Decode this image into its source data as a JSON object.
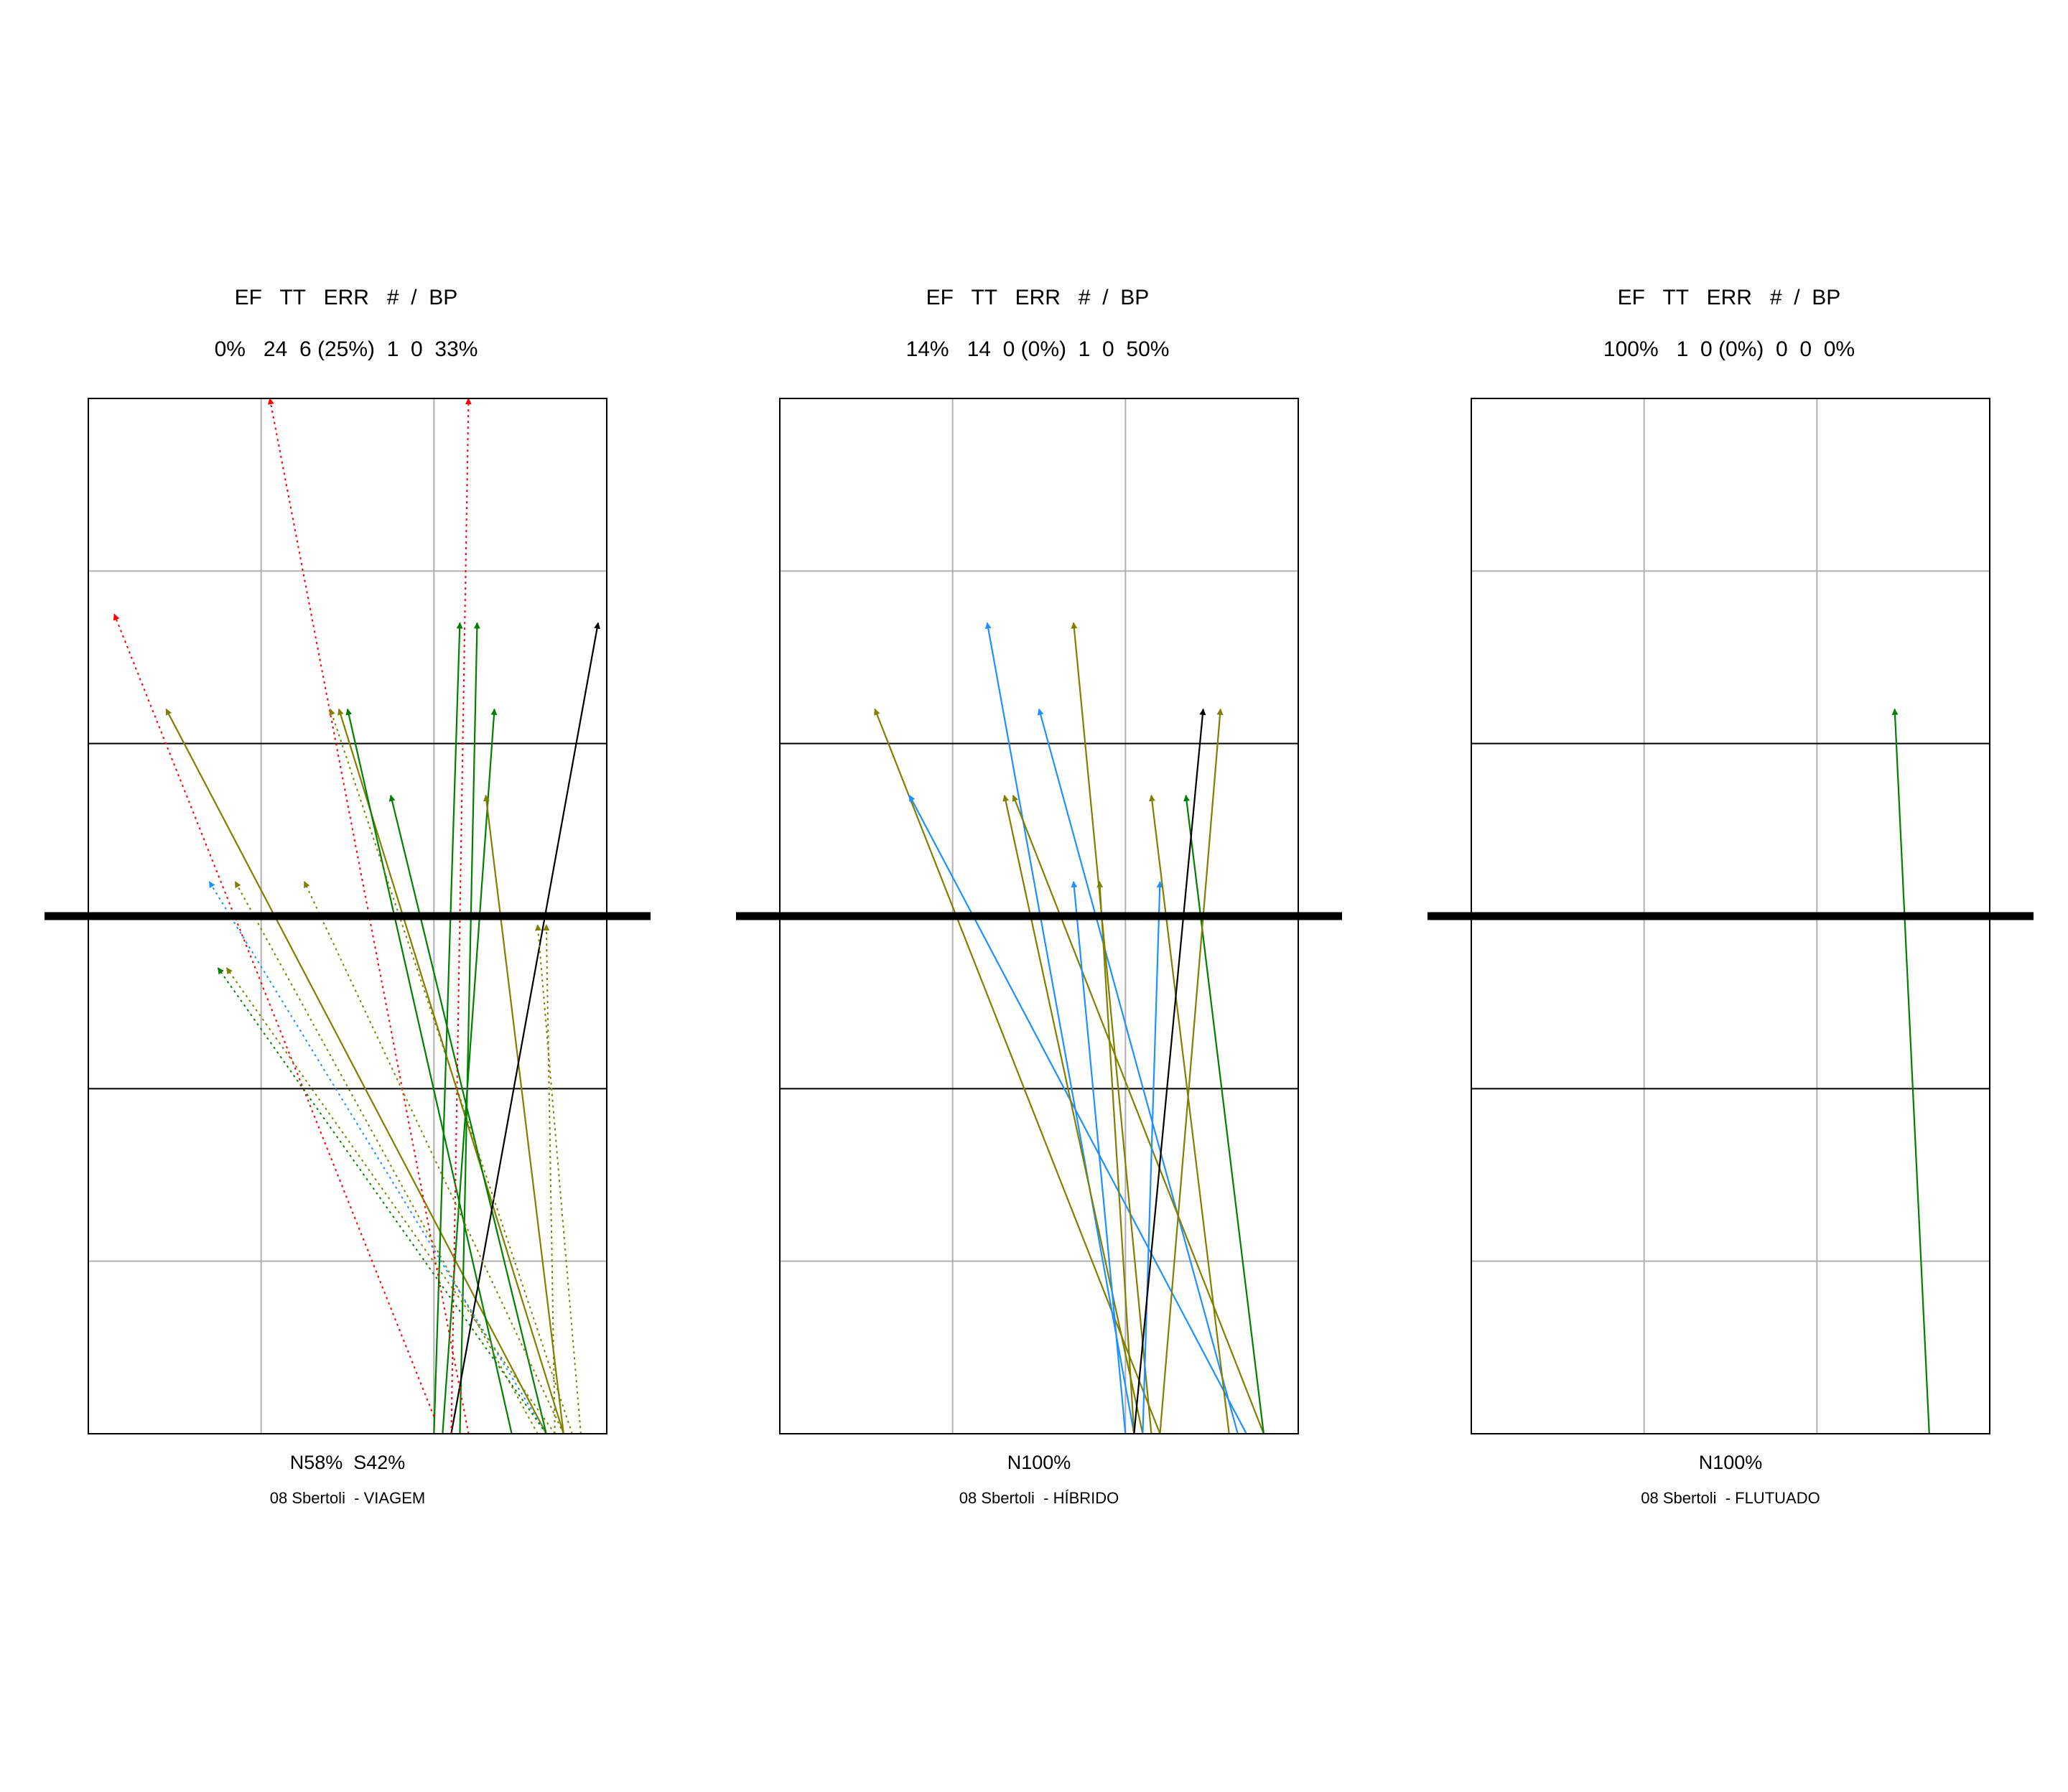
{
  "colors": {
    "olive": "#808000",
    "green": "#008000",
    "blue": "#1e90ff",
    "black": "#000000",
    "red": "#ff0000",
    "grid_major": "#000000",
    "grid_minor": "#b0b0b0"
  },
  "panels": [
    {
      "header": "EF   TT   ERR   #  /  BP",
      "stats": "0%   24  6 (25%)  1  0  33%",
      "zone_split": "N58%  S42%",
      "caption": "08 Sbertoli  - VIAGEM",
      "serves": [
        {
          "color": "olive",
          "style": "solid",
          "from": [
            5.3,
            0.0
          ],
          "to": [
            0.9,
            8.4
          ]
        },
        {
          "color": "olive",
          "style": "solid",
          "from": [
            5.5,
            0.0
          ],
          "to": [
            2.9,
            8.4
          ]
        },
        {
          "color": "green",
          "style": "solid",
          "from": [
            4.9,
            0.0
          ],
          "to": [
            3.0,
            8.4
          ]
        },
        {
          "color": "green",
          "style": "solid",
          "from": [
            4.0,
            0.0
          ],
          "to": [
            4.3,
            9.4
          ]
        },
        {
          "color": "green",
          "style": "solid",
          "from": [
            4.1,
            0.0
          ],
          "to": [
            4.7,
            8.4
          ]
        },
        {
          "color": "green",
          "style": "solid",
          "from": [
            4.3,
            0.0
          ],
          "to": [
            4.5,
            9.4
          ]
        },
        {
          "color": "green",
          "style": "solid",
          "from": [
            5.3,
            0.0
          ],
          "to": [
            3.5,
            7.4
          ]
        },
        {
          "color": "olive",
          "style": "solid",
          "from": [
            5.5,
            0.0
          ],
          "to": [
            4.6,
            7.4
          ]
        },
        {
          "color": "black",
          "style": "solid",
          "from": [
            4.2,
            0.0
          ],
          "to": [
            5.9,
            9.4
          ]
        },
        {
          "color": "red",
          "style": "dotted",
          "from": [
            4.0,
            0.2
          ],
          "to": [
            0.3,
            9.5
          ]
        },
        {
          "color": "red",
          "style": "dotted",
          "from": [
            4.4,
            0.0
          ],
          "to": [
            2.1,
            12.0
          ]
        },
        {
          "color": "red",
          "style": "dotted",
          "from": [
            4.2,
            0.0
          ],
          "to": [
            4.4,
            12.0
          ]
        },
        {
          "color": "olive",
          "style": "dotted",
          "from": [
            5.6,
            0.0
          ],
          "to": [
            2.8,
            8.4
          ]
        },
        {
          "color": "olive",
          "style": "dotted",
          "from": [
            5.5,
            0.0
          ],
          "to": [
            2.5,
            6.4
          ]
        },
        {
          "color": "olive",
          "style": "dotted",
          "from": [
            5.2,
            0.0
          ],
          "to": [
            1.7,
            6.4
          ]
        },
        {
          "color": "blue",
          "style": "dotted",
          "from": [
            5.3,
            0.0
          ],
          "to": [
            1.4,
            6.4
          ]
        },
        {
          "color": "olive",
          "style": "dotted",
          "from": [
            5.4,
            0.0
          ],
          "to": [
            1.6,
            5.4
          ]
        },
        {
          "color": "green",
          "style": "dotted",
          "from": [
            5.3,
            0.0
          ],
          "to": [
            1.5,
            5.4
          ]
        },
        {
          "color": "olive",
          "style": "dotted",
          "from": [
            5.7,
            0.0
          ],
          "to": [
            5.2,
            5.9
          ]
        },
        {
          "color": "olive",
          "style": "dotted",
          "from": [
            5.4,
            0.0
          ],
          "to": [
            5.3,
            5.9
          ]
        }
      ]
    },
    {
      "header": "EF   TT   ERR   #  /  BP",
      "stats": "14%   14  0 (0%)  1  0  50%",
      "zone_split": "N100%",
      "caption": "08 Sbertoli  - HÍBRIDO",
      "serves": [
        {
          "color": "olive",
          "style": "solid",
          "from": [
            4.4,
            0.0
          ],
          "to": [
            1.1,
            8.4
          ]
        },
        {
          "color": "blue",
          "style": "solid",
          "from": [
            5.4,
            0.0
          ],
          "to": [
            1.5,
            7.4
          ]
        },
        {
          "color": "blue",
          "style": "solid",
          "from": [
            4.1,
            0.0
          ],
          "to": [
            2.4,
            9.4
          ]
        },
        {
          "color": "blue",
          "style": "solid",
          "from": [
            5.3,
            0.0
          ],
          "to": [
            3.0,
            8.4
          ]
        },
        {
          "color": "olive",
          "style": "solid",
          "from": [
            5.6,
            0.0
          ],
          "to": [
            2.7,
            7.4
          ]
        },
        {
          "color": "olive",
          "style": "solid",
          "from": [
            4.2,
            0.0
          ],
          "to": [
            2.6,
            7.4
          ]
        },
        {
          "color": "olive",
          "style": "solid",
          "from": [
            4.3,
            0.0
          ],
          "to": [
            3.4,
            9.4
          ]
        },
        {
          "color": "blue",
          "style": "solid",
          "from": [
            4.0,
            0.0
          ],
          "to": [
            3.4,
            6.4
          ]
        },
        {
          "color": "olive",
          "style": "solid",
          "from": [
            4.1,
            0.0
          ],
          "to": [
            3.7,
            6.4
          ]
        },
        {
          "color": "blue",
          "style": "solid",
          "from": [
            4.2,
            0.0
          ],
          "to": [
            4.4,
            6.4
          ]
        },
        {
          "color": "olive",
          "style": "solid",
          "from": [
            5.2,
            0.0
          ],
          "to": [
            4.3,
            7.4
          ]
        },
        {
          "color": "green",
          "style": "solid",
          "from": [
            5.6,
            0.0
          ],
          "to": [
            4.7,
            7.4
          ]
        },
        {
          "color": "black",
          "style": "solid",
          "from": [
            4.1,
            0.0
          ],
          "to": [
            4.9,
            8.4
          ]
        },
        {
          "color": "olive",
          "style": "solid",
          "from": [
            4.4,
            0.0
          ],
          "to": [
            5.1,
            8.4
          ]
        }
      ]
    },
    {
      "header": "EF   TT   ERR   #  /  BP",
      "stats": "100%   1  0 (0%)  0  0  0%",
      "zone_split": "N100%",
      "caption": "08 Sbertoli  - FLUTUADO",
      "serves": [
        {
          "color": "green",
          "style": "solid",
          "from": [
            5.3,
            0.0
          ],
          "to": [
            4.9,
            8.4
          ]
        }
      ]
    }
  ]
}
